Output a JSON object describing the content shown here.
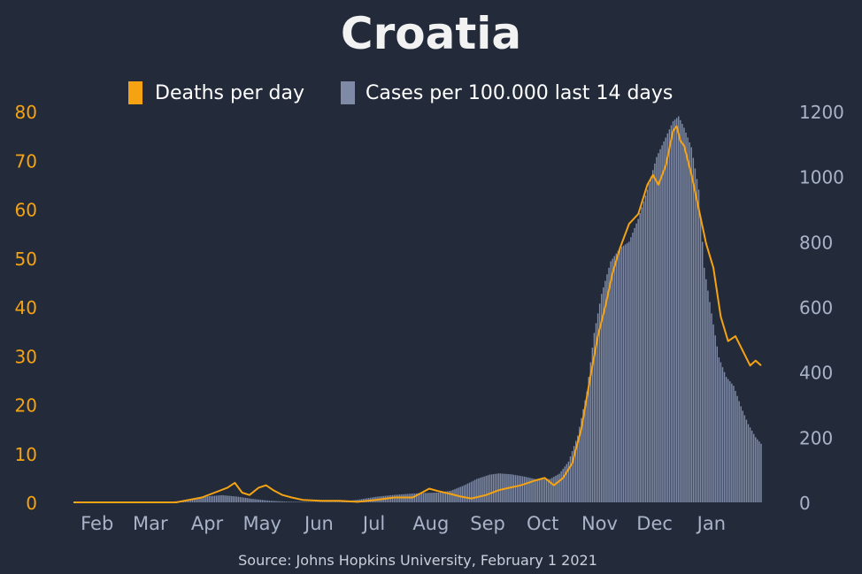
{
  "title": "Croatia",
  "source": "Source: Johns Hopkins University, February 1 2021",
  "colors": {
    "background": "#232b3b",
    "deaths": "#f5a312",
    "cases": "#7e8aa6",
    "title": "#f2f2f2",
    "left_axis": "#f5a312",
    "right_axis": "#a9b3c8",
    "x_axis": "#a9b3c8"
  },
  "chart_data": {
    "type": "bar",
    "legend": {
      "placement": "top-center",
      "entries": [
        {
          "label": "Deaths per day",
          "color": "#f5a312"
        },
        {
          "label": "Cases per 100.000 last 14 days",
          "color": "#7e8aa6"
        }
      ]
    },
    "x_start": "2020-01-22",
    "x_end": "2021-01-31",
    "x_ticks": [
      {
        "label": "Feb",
        "date": "2020-02-01"
      },
      {
        "label": "Mar",
        "date": "2020-03-01"
      },
      {
        "label": "Apr",
        "date": "2020-04-01"
      },
      {
        "label": "May",
        "date": "2020-05-01"
      },
      {
        "label": "Jun",
        "date": "2020-06-01"
      },
      {
        "label": "Jul",
        "date": "2020-07-01"
      },
      {
        "label": "Aug",
        "date": "2020-08-01"
      },
      {
        "label": "Sep",
        "date": "2020-09-01"
      },
      {
        "label": "Oct",
        "date": "2020-10-01"
      },
      {
        "label": "Nov",
        "date": "2020-11-01"
      },
      {
        "label": "Dec",
        "date": "2020-12-01"
      },
      {
        "label": "Jan",
        "date": "2021-01-01"
      }
    ],
    "y_left": {
      "min": 0,
      "max": 80,
      "ticks": [
        0,
        10,
        20,
        30,
        40,
        50,
        60,
        70,
        80
      ]
    },
    "y_right": {
      "min": 0,
      "max": 1200,
      "ticks": [
        0,
        200,
        400,
        600,
        800,
        1000,
        1200
      ]
    },
    "grid": false,
    "series": [
      {
        "name": "Cases per 100.000 last 14 days",
        "type": "bar",
        "axis": "right",
        "points": [
          [
            "2020-01-22",
            0
          ],
          [
            "2020-02-25",
            0
          ],
          [
            "2020-03-10",
            0.3
          ],
          [
            "2020-03-20",
            4
          ],
          [
            "2020-03-28",
            12
          ],
          [
            "2020-04-05",
            19
          ],
          [
            "2020-04-12",
            22
          ],
          [
            "2020-04-20",
            18
          ],
          [
            "2020-04-28",
            11
          ],
          [
            "2020-05-08",
            5
          ],
          [
            "2020-05-18",
            2
          ],
          [
            "2020-06-01",
            1
          ],
          [
            "2020-06-15",
            2
          ],
          [
            "2020-06-25",
            8
          ],
          [
            "2020-07-05",
            17
          ],
          [
            "2020-07-15",
            23
          ],
          [
            "2020-07-25",
            27
          ],
          [
            "2020-08-01",
            29
          ],
          [
            "2020-08-08",
            30
          ],
          [
            "2020-08-15",
            36
          ],
          [
            "2020-08-22",
            52
          ],
          [
            "2020-08-29",
            72
          ],
          [
            "2020-09-05",
            85
          ],
          [
            "2020-09-10",
            89
          ],
          [
            "2020-09-17",
            86
          ],
          [
            "2020-09-24",
            79
          ],
          [
            "2020-10-01",
            70
          ],
          [
            "2020-10-08",
            72
          ],
          [
            "2020-10-13",
            88
          ],
          [
            "2020-10-18",
            125
          ],
          [
            "2020-10-23",
            205
          ],
          [
            "2020-10-28",
            340
          ],
          [
            "2020-11-01",
            520
          ],
          [
            "2020-11-05",
            640
          ],
          [
            "2020-11-10",
            740
          ],
          [
            "2020-11-15",
            780
          ],
          [
            "2020-11-20",
            800
          ],
          [
            "2020-11-25",
            870
          ],
          [
            "2020-11-30",
            960
          ],
          [
            "2020-12-05",
            1060
          ],
          [
            "2020-12-10",
            1120
          ],
          [
            "2020-12-14",
            1170
          ],
          [
            "2020-12-17",
            1185
          ],
          [
            "2020-12-20",
            1150
          ],
          [
            "2020-12-24",
            1090
          ],
          [
            "2020-12-28",
            960
          ],
          [
            "2020-12-31",
            720
          ],
          [
            "2021-01-04",
            580
          ],
          [
            "2021-01-08",
            445
          ],
          [
            "2021-01-12",
            385
          ],
          [
            "2021-01-16",
            358
          ],
          [
            "2021-01-20",
            295
          ],
          [
            "2021-01-24",
            240
          ],
          [
            "2021-01-28",
            200
          ],
          [
            "2021-01-31",
            180
          ]
        ]
      },
      {
        "name": "Deaths per day",
        "type": "line",
        "axis": "left",
        "points": [
          [
            "2020-01-22",
            0
          ],
          [
            "2020-03-18",
            0
          ],
          [
            "2020-03-25",
            0.5
          ],
          [
            "2020-04-01",
            1
          ],
          [
            "2020-04-08",
            2
          ],
          [
            "2020-04-15",
            3
          ],
          [
            "2020-04-19",
            4
          ],
          [
            "2020-04-23",
            2
          ],
          [
            "2020-04-27",
            1.5
          ],
          [
            "2020-05-02",
            3
          ],
          [
            "2020-05-06",
            3.5
          ],
          [
            "2020-05-10",
            2.5
          ],
          [
            "2020-05-15",
            1.5
          ],
          [
            "2020-05-20",
            1
          ],
          [
            "2020-05-26",
            0.5
          ],
          [
            "2020-06-05",
            0.3
          ],
          [
            "2020-06-15",
            0.3
          ],
          [
            "2020-06-25",
            0.1
          ],
          [
            "2020-07-05",
            0.5
          ],
          [
            "2020-07-15",
            1
          ],
          [
            "2020-07-25",
            1
          ],
          [
            "2020-07-30",
            2
          ],
          [
            "2020-08-03",
            2.8
          ],
          [
            "2020-08-08",
            2.3
          ],
          [
            "2020-08-14",
            1.8
          ],
          [
            "2020-08-20",
            1.2
          ],
          [
            "2020-08-26",
            0.8
          ],
          [
            "2020-09-03",
            1.5
          ],
          [
            "2020-09-10",
            2.5
          ],
          [
            "2020-09-16",
            3
          ],
          [
            "2020-09-22",
            3.5
          ],
          [
            "2020-09-26",
            4
          ],
          [
            "2020-09-30",
            4.5
          ],
          [
            "2020-10-05",
            5
          ],
          [
            "2020-10-10",
            3.5
          ],
          [
            "2020-10-15",
            5
          ],
          [
            "2020-10-20",
            8
          ],
          [
            "2020-10-25",
            15
          ],
          [
            "2020-10-30",
            26
          ],
          [
            "2020-11-03",
            34
          ],
          [
            "2020-11-07",
            40
          ],
          [
            "2020-11-11",
            47
          ],
          [
            "2020-11-15",
            52
          ],
          [
            "2020-11-20",
            57
          ],
          [
            "2020-11-25",
            59
          ],
          [
            "2020-11-30",
            65
          ],
          [
            "2020-12-03",
            67
          ],
          [
            "2020-12-06",
            65
          ],
          [
            "2020-12-10",
            69
          ],
          [
            "2020-12-14",
            76
          ],
          [
            "2020-12-16",
            77
          ],
          [
            "2020-12-18",
            74
          ],
          [
            "2020-12-20",
            73
          ],
          [
            "2020-12-24",
            67
          ],
          [
            "2020-12-28",
            60
          ],
          [
            "2021-01-01",
            53
          ],
          [
            "2021-01-05",
            48
          ],
          [
            "2021-01-09",
            38
          ],
          [
            "2021-01-13",
            33
          ],
          [
            "2021-01-17",
            34
          ],
          [
            "2021-01-21",
            31
          ],
          [
            "2021-01-25",
            28
          ],
          [
            "2021-01-28",
            29
          ],
          [
            "2021-01-31",
            28
          ]
        ]
      }
    ]
  }
}
